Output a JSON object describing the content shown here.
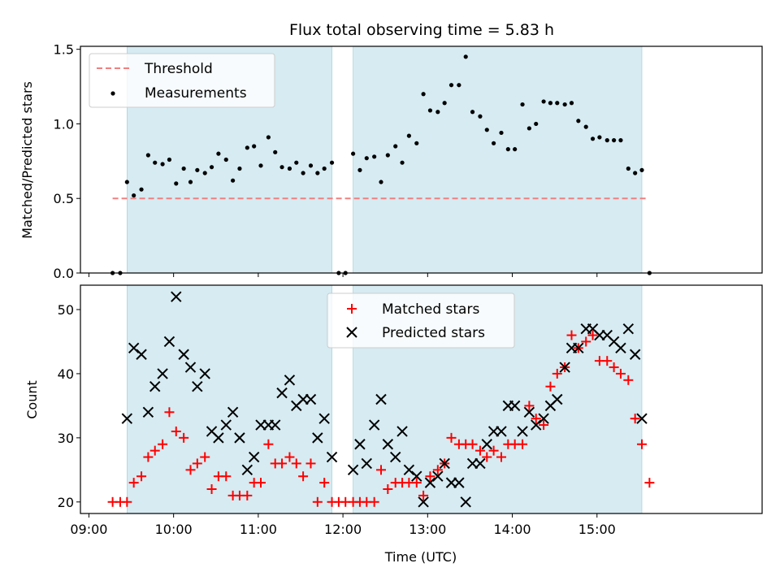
{
  "chart_data": [
    {
      "type": "scatter",
      "title": "Flux total observing time = 5.83 h",
      "xlabel": "",
      "ylabel": "Matched/Predicted stars",
      "xlim": [
        8.9,
        16.95
      ],
      "ylim": [
        0.0,
        1.52
      ],
      "yticks": [
        0.0,
        0.5,
        1.0,
        1.5
      ],
      "ytick_labels": [
        "0.0",
        "0.5",
        "1.0",
        "1.5"
      ],
      "xtick_values": [
        9,
        10,
        11,
        12,
        13,
        14,
        15
      ],
      "legend": {
        "position": "upper-left",
        "entries": [
          "Threshold",
          "Measurements"
        ]
      },
      "observing_windows": [
        [
          9.45,
          11.87
        ],
        [
          12.12,
          15.53
        ]
      ],
      "series": [
        {
          "name": "Threshold",
          "kind": "dashed-line",
          "color": "#f08080",
          "x": [
            9.28,
            15.58
          ],
          "values": [
            0.5,
            0.5
          ]
        },
        {
          "name": "Measurements",
          "kind": "dots",
          "color": "#000000",
          "x": [
            9.28,
            9.37,
            9.45,
            9.53,
            9.62,
            9.7,
            9.78,
            9.87,
            9.95,
            10.03,
            10.12,
            10.2,
            10.28,
            10.37,
            10.45,
            10.53,
            10.62,
            10.7,
            10.78,
            10.87,
            10.95,
            11.03,
            11.12,
            11.2,
            11.28,
            11.37,
            11.45,
            11.53,
            11.62,
            11.7,
            11.78,
            11.87,
            11.95,
            12.03,
            12.12,
            12.2,
            12.28,
            12.37,
            12.45,
            12.53,
            12.62,
            12.7,
            12.78,
            12.87,
            12.95,
            13.03,
            13.12,
            13.2,
            13.28,
            13.37,
            13.45,
            13.53,
            13.62,
            13.7,
            13.78,
            13.87,
            13.95,
            14.03,
            14.12,
            14.2,
            14.28,
            14.37,
            14.45,
            14.53,
            14.62,
            14.7,
            14.78,
            14.87,
            14.95,
            15.03,
            15.12,
            15.2,
            15.28,
            15.37,
            15.45,
            15.53,
            15.62
          ],
          "values": [
            0.0,
            0.0,
            0.61,
            0.52,
            0.56,
            0.79,
            0.74,
            0.73,
            0.76,
            0.6,
            0.7,
            0.61,
            0.69,
            0.67,
            0.71,
            0.8,
            0.76,
            0.62,
            0.7,
            0.84,
            0.85,
            0.72,
            0.91,
            0.81,
            0.71,
            0.7,
            0.74,
            0.67,
            0.72,
            0.67,
            0.7,
            0.74,
            0.0,
            0.0,
            0.8,
            0.69,
            0.77,
            0.78,
            0.61,
            0.79,
            0.85,
            0.74,
            0.92,
            0.87,
            1.2,
            1.09,
            1.08,
            1.14,
            1.26,
            1.26,
            1.45,
            1.08,
            1.05,
            0.96,
            0.87,
            0.94,
            0.83,
            0.83,
            1.13,
            0.97,
            1.0,
            1.15,
            1.14,
            1.14,
            1.13,
            1.14,
            1.02,
            0.98,
            0.9,
            0.91,
            0.89,
            0.89,
            0.89,
            0.7,
            0.67,
            0.69,
            0.0
          ]
        }
      ]
    },
    {
      "type": "scatter",
      "title": "",
      "xlabel": "Time (UTC)",
      "ylabel": "Count",
      "xlim": [
        8.9,
        16.95
      ],
      "ylim": [
        18.2,
        53.8
      ],
      "yticks": [
        20,
        30,
        40,
        50
      ],
      "ytick_labels": [
        "20",
        "30",
        "40",
        "50"
      ],
      "xtick_values": [
        9,
        10,
        11,
        12,
        13,
        14,
        15
      ],
      "xtick_labels": [
        "09:00",
        "10:00",
        "11:00",
        "12:00",
        "13:00",
        "14:00",
        "15:00"
      ],
      "legend": {
        "position": "upper-center",
        "entries": [
          "Matched stars",
          "Predicted stars"
        ]
      },
      "observing_windows": [
        [
          9.45,
          11.87
        ],
        [
          12.12,
          15.53
        ]
      ],
      "series": [
        {
          "name": "Matched stars",
          "marker": "plus",
          "color": "#ff0000",
          "x": [
            9.28,
            9.37,
            9.45,
            9.53,
            9.62,
            9.7,
            9.78,
            9.87,
            9.95,
            10.03,
            10.12,
            10.2,
            10.28,
            10.37,
            10.45,
            10.53,
            10.62,
            10.7,
            10.78,
            10.87,
            10.95,
            11.03,
            11.12,
            11.2,
            11.28,
            11.37,
            11.45,
            11.53,
            11.62,
            11.7,
            11.78,
            11.87,
            11.95,
            12.03,
            12.12,
            12.2,
            12.28,
            12.37,
            12.45,
            12.53,
            12.62,
            12.7,
            12.78,
            12.87,
            12.95,
            13.03,
            13.12,
            13.2,
            13.28,
            13.37,
            13.45,
            13.53,
            13.62,
            13.7,
            13.78,
            13.87,
            13.95,
            14.03,
            14.12,
            14.2,
            14.28,
            14.37,
            14.45,
            14.53,
            14.62,
            14.7,
            14.78,
            14.87,
            14.95,
            15.03,
            15.12,
            15.2,
            15.28,
            15.37,
            15.45,
            15.53,
            15.62
          ],
          "values": [
            20,
            20,
            20,
            23,
            24,
            27,
            28,
            29,
            34,
            31,
            30,
            25,
            26,
            27,
            22,
            24,
            24,
            21,
            21,
            21,
            23,
            23,
            29,
            26,
            26,
            27,
            26,
            24,
            26,
            20,
            23,
            20,
            20,
            20,
            20,
            20,
            20,
            20,
            25,
            22,
            23,
            23,
            23,
            23,
            21,
            24,
            25,
            26,
            30,
            29,
            29,
            29,
            28,
            27,
            28,
            27,
            29,
            29,
            29,
            35,
            33,
            32,
            38,
            40,
            41,
            46,
            44,
            45,
            46,
            42,
            42,
            41,
            40,
            39,
            33,
            29,
            23
          ]
        },
        {
          "name": "Predicted stars",
          "marker": "x",
          "color": "#000000",
          "x": [
            9.45,
            9.53,
            9.62,
            9.7,
            9.78,
            9.87,
            9.95,
            10.03,
            10.12,
            10.2,
            10.28,
            10.37,
            10.45,
            10.53,
            10.62,
            10.7,
            10.78,
            10.87,
            10.95,
            11.03,
            11.12,
            11.2,
            11.28,
            11.37,
            11.45,
            11.53,
            11.62,
            11.7,
            11.78,
            11.87,
            12.12,
            12.2,
            12.28,
            12.37,
            12.45,
            12.53,
            12.62,
            12.7,
            12.78,
            12.87,
            12.95,
            13.03,
            13.12,
            13.2,
            13.28,
            13.37,
            13.45,
            13.53,
            13.62,
            13.7,
            13.78,
            13.87,
            13.95,
            14.03,
            14.12,
            14.2,
            14.28,
            14.37,
            14.45,
            14.53,
            14.62,
            14.7,
            14.78,
            14.87,
            14.95,
            15.03,
            15.12,
            15.2,
            15.28,
            15.37,
            15.45,
            15.53
          ],
          "values": [
            33,
            44,
            43,
            34,
            38,
            40,
            45,
            52,
            43,
            41,
            38,
            40,
            31,
            30,
            32,
            34,
            30,
            25,
            27,
            32,
            32,
            32,
            37,
            39,
            35,
            36,
            36,
            30,
            33,
            27,
            25,
            29,
            26,
            32,
            36,
            29,
            27,
            31,
            25,
            24,
            20,
            23,
            24,
            26,
            23,
            23,
            20,
            26,
            26,
            29,
            31,
            31,
            35,
            35,
            31,
            34,
            32,
            33,
            35,
            36,
            41,
            44,
            44,
            47,
            47,
            46,
            46,
            45,
            44,
            47,
            43,
            33
          ]
        }
      ]
    }
  ]
}
